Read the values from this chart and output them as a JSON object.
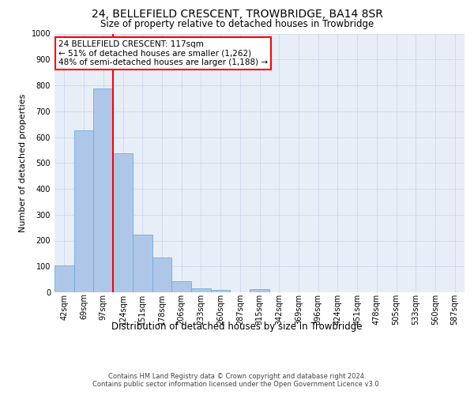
{
  "title": "24, BELLEFIELD CRESCENT, TROWBRIDGE, BA14 8SR",
  "subtitle": "Size of property relative to detached houses in Trowbridge",
  "xlabel": "Distribution of detached houses by size in Trowbridge",
  "ylabel": "Number of detached properties",
  "footer_line1": "Contains HM Land Registry data © Crown copyright and database right 2024.",
  "footer_line2": "Contains public sector information licensed under the Open Government Licence v3.0.",
  "bin_labels": [
    "42sqm",
    "69sqm",
    "97sqm",
    "124sqm",
    "151sqm",
    "178sqm",
    "206sqm",
    "233sqm",
    "260sqm",
    "287sqm",
    "315sqm",
    "342sqm",
    "369sqm",
    "396sqm",
    "424sqm",
    "451sqm",
    "478sqm",
    "505sqm",
    "533sqm",
    "560sqm",
    "587sqm"
  ],
  "bar_values": [
    103,
    625,
    787,
    537,
    222,
    133,
    42,
    15,
    10,
    0,
    12,
    0,
    0,
    0,
    0,
    0,
    0,
    0,
    0,
    0,
    0
  ],
  "bar_color": "#aec7e8",
  "bar_edgecolor": "#6baed6",
  "vline_x": 2.5,
  "vline_color": "red",
  "annotation_text": "24 BELLEFIELD CRESCENT: 117sqm\n← 51% of detached houses are smaller (1,262)\n48% of semi-detached houses are larger (1,188) →",
  "annotation_box_edgecolor": "red",
  "ylim": [
    0,
    1000
  ],
  "yticks": [
    0,
    100,
    200,
    300,
    400,
    500,
    600,
    700,
    800,
    900,
    1000
  ],
  "grid_color": "#c8d4e8",
  "plot_background": "#e8eef8",
  "fig_background": "#ffffff",
  "title_fontsize": 10,
  "subtitle_fontsize": 8.5,
  "ylabel_fontsize": 8,
  "xlabel_fontsize": 8.5,
  "tick_fontsize": 7,
  "footer_fontsize": 6,
  "annotation_fontsize": 7.5
}
